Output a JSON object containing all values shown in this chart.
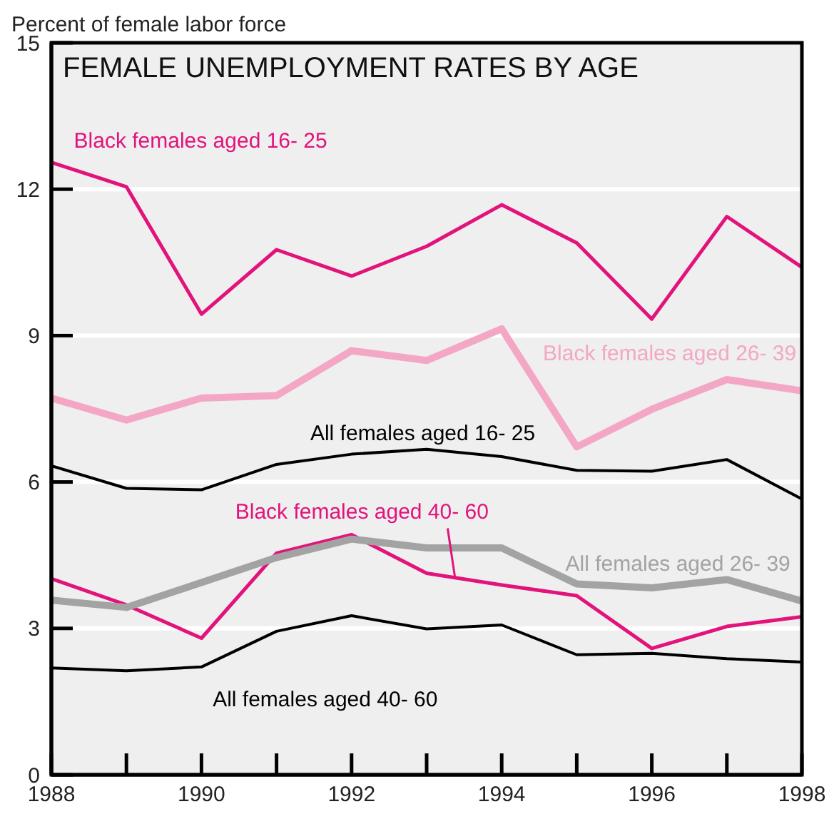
{
  "chart_data": {
    "type": "line",
    "title": "FEMALE UNEMPLOYMENT RATES BY AGE",
    "ylabel": "Percent of female labor force",
    "x": [
      1988,
      1989,
      1990,
      1991,
      1992,
      1993,
      1994,
      1995,
      1996,
      1997,
      1998
    ],
    "series": [
      {
        "name": "Black females aged 16- 25",
        "color": "#e2137b",
        "values": [
          12.55,
          12.05,
          9.44,
          10.76,
          10.22,
          10.83,
          11.68,
          10.9,
          9.34,
          11.44,
          10.4
        ]
      },
      {
        "name": "Black females aged 26- 39",
        "color": "#f4a7c5",
        "values": [
          7.72,
          7.27,
          7.72,
          7.77,
          8.69,
          8.49,
          9.14,
          6.72,
          7.49,
          8.1,
          7.87
        ]
      },
      {
        "name": "All females aged 16- 25",
        "color": "#000000",
        "values": [
          6.33,
          5.87,
          5.84,
          6.36,
          6.57,
          6.67,
          6.52,
          6.24,
          6.22,
          6.46,
          5.65
        ]
      },
      {
        "name": "Black females  aged 40- 60",
        "color": "#e2137b",
        "values": [
          4.02,
          3.48,
          2.8,
          4.54,
          4.92,
          4.13,
          3.89,
          3.67,
          2.59,
          3.04,
          3.24
        ]
      },
      {
        "name": "All females aged 26- 39",
        "color": "#a3a3a3",
        "values": [
          3.58,
          3.43,
          3.94,
          4.45,
          4.83,
          4.65,
          4.65,
          3.91,
          3.83,
          4.0,
          3.56
        ]
      },
      {
        "name": "All females aged 40- 60",
        "color": "#000000",
        "values": [
          2.19,
          2.13,
          2.21,
          2.94,
          3.26,
          2.99,
          3.07,
          2.46,
          2.49,
          2.38,
          2.31
        ]
      }
    ],
    "xlim": [
      1988,
      1998
    ],
    "xticks": [
      1988,
      {
        "value": 1989,
        "label": null
      },
      1990,
      {
        "value": 1991,
        "label": null
      },
      1992,
      {
        "value": 1993,
        "label": null
      },
      1994,
      {
        "value": 1995,
        "label": null
      },
      1996,
      {
        "value": 1997,
        "label": null
      },
      1998
    ],
    "ylim": [
      0,
      15
    ],
    "yticks": [
      0,
      3,
      6,
      9,
      12,
      15
    ],
    "grid": "y",
    "legend": false,
    "marker": "none",
    "line_style": "solid"
  }
}
